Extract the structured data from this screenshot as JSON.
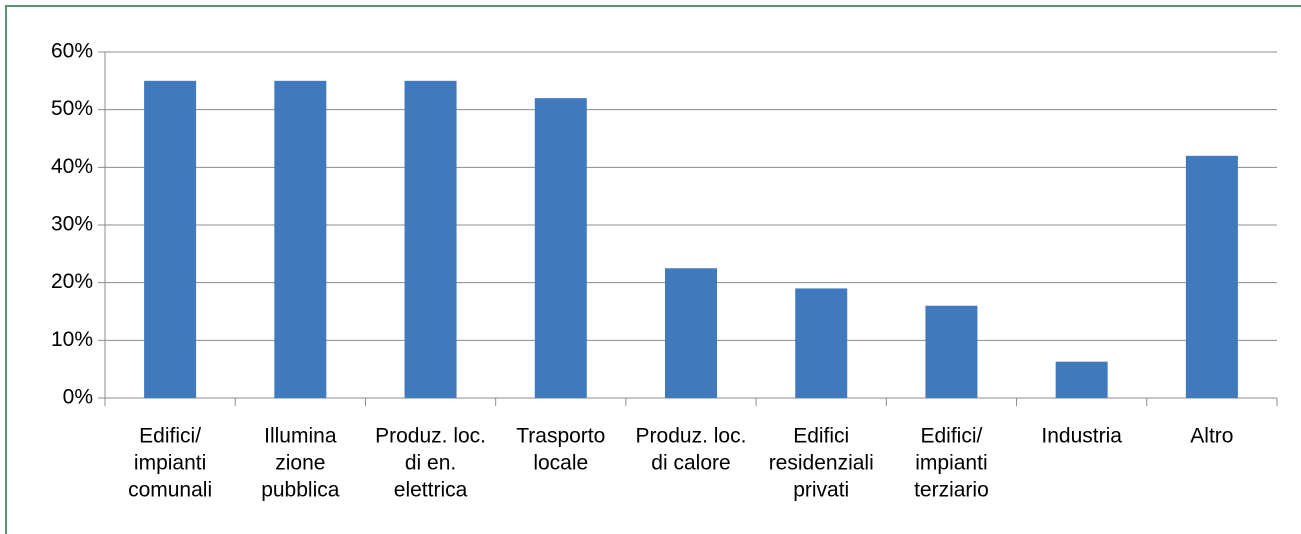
{
  "chart_data": {
    "type": "bar",
    "categories": [
      [
        "Edifici/",
        "impianti",
        "comunali"
      ],
      [
        "Illumina",
        "zione",
        "pubblica"
      ],
      [
        "Produz. loc.",
        "di en.",
        "elettrica"
      ],
      [
        "Trasporto",
        "locale"
      ],
      [
        "Produz. loc.",
        "di calore"
      ],
      [
        "Edifici",
        "residenziali",
        "privati"
      ],
      [
        "Edifici/",
        "impianti",
        "terziario"
      ],
      [
        "Industria"
      ],
      [
        "Altro"
      ]
    ],
    "values": [
      55,
      55,
      55,
      52,
      22.5,
      19,
      16,
      6.3,
      42
    ],
    "color": "#4179bd",
    "ylim": [
      0,
      60
    ],
    "yticks": [
      {
        "value": 0,
        "label": "0%"
      },
      {
        "value": 10,
        "label": "10%"
      },
      {
        "value": 20,
        "label": "20%"
      },
      {
        "value": 30,
        "label": "30%"
      },
      {
        "value": 40,
        "label": "40%"
      },
      {
        "value": 50,
        "label": "50%"
      },
      {
        "value": 60,
        "label": "60%"
      }
    ],
    "grid": true
  }
}
